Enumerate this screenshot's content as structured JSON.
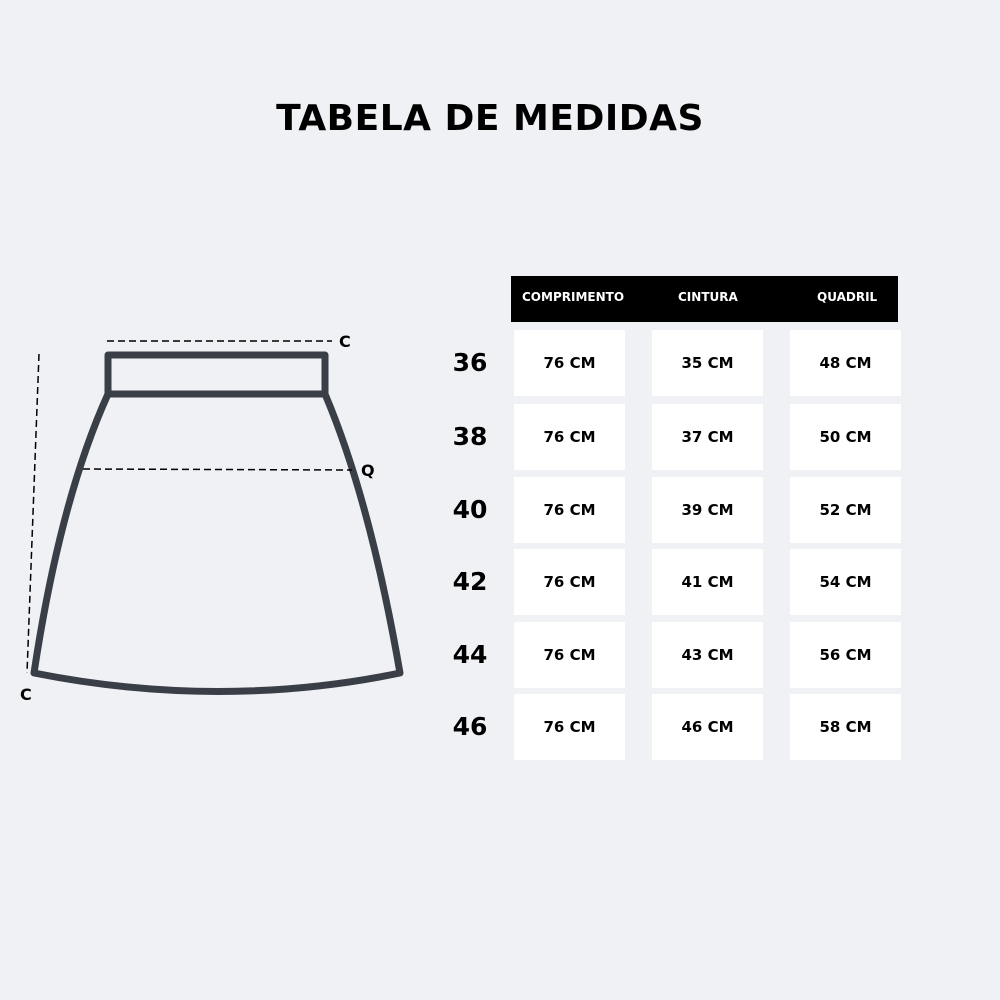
{
  "title": "TABELA DE MEDIDAS",
  "diagram": {
    "top_label": "C",
    "hip_label": "Q",
    "length_label": "C",
    "stroke_color": "#3a3f47"
  },
  "table": {
    "headers": [
      "COMPRIMENTO",
      "CINTURA",
      "QUADRIL"
    ],
    "rows": [
      {
        "size": "36",
        "values": [
          "76 CM",
          "35 CM",
          "48 CM"
        ]
      },
      {
        "size": "38",
        "values": [
          "76 CM",
          "37 CM",
          "50 CM"
        ]
      },
      {
        "size": "40",
        "values": [
          "76 CM",
          "39 CM",
          "52 CM"
        ]
      },
      {
        "size": "42",
        "values": [
          "76 CM",
          "41 CM",
          "54 CM"
        ]
      },
      {
        "size": "44",
        "values": [
          "76 CM",
          "43 CM",
          "56 CM"
        ]
      },
      {
        "size": "46",
        "values": [
          "76 CM",
          "46 CM",
          "58 CM"
        ]
      }
    ]
  }
}
